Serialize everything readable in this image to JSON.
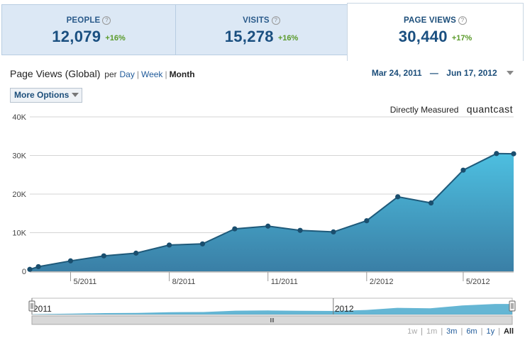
{
  "tabs": [
    {
      "label": "PEOPLE",
      "value": "12,079",
      "change": "+16%"
    },
    {
      "label": "VISITS",
      "value": "15,278",
      "change": "+16%"
    },
    {
      "label": "PAGE VIEWS",
      "value": "30,440",
      "change": "+17%"
    }
  ],
  "header": {
    "title": "Page Views (Global)",
    "per": "per",
    "day": "Day",
    "week": "Week",
    "month": "Month",
    "date_start": "Mar 24, 2011",
    "date_sep": "—",
    "date_end": "Jun 17, 2012"
  },
  "more_options": "More Options",
  "measured": "Directly Measured",
  "brand": "quantcast",
  "help_glyph": "?",
  "colors": {
    "area_top": "#4dbfe0",
    "area_bottom": "#3a7fa6",
    "line": "#1f5a7a",
    "point": "#1a4e6e"
  },
  "chart_data": {
    "type": "area",
    "x": [
      "2011-03-24",
      "2011-04-01",
      "2011-05-01",
      "2011-06-01",
      "2011-07-01",
      "2011-08-01",
      "2011-09-01",
      "2011-10-01",
      "2011-11-01",
      "2011-12-01",
      "2012-01-01",
      "2012-02-01",
      "2012-03-01",
      "2012-04-01",
      "2012-05-01",
      "2012-06-01",
      "2012-06-17"
    ],
    "values": [
      500,
      1200,
      2700,
      4000,
      4700,
      6800,
      7100,
      11000,
      11700,
      10600,
      10200,
      13100,
      19300,
      17700,
      26200,
      30500,
      30440
    ],
    "y_ticks": [
      "0",
      "10K",
      "20K",
      "30K",
      "40K"
    ],
    "ylim": [
      0,
      40000
    ],
    "x_ticks": [
      "5/2011",
      "8/2011",
      "11/2011",
      "2/2012",
      "5/2012"
    ],
    "navigator_labels": [
      "2011",
      "2012"
    ],
    "grid": true
  },
  "ranges": [
    "1w",
    "1m",
    "3m",
    "6m",
    "1y",
    "All"
  ]
}
